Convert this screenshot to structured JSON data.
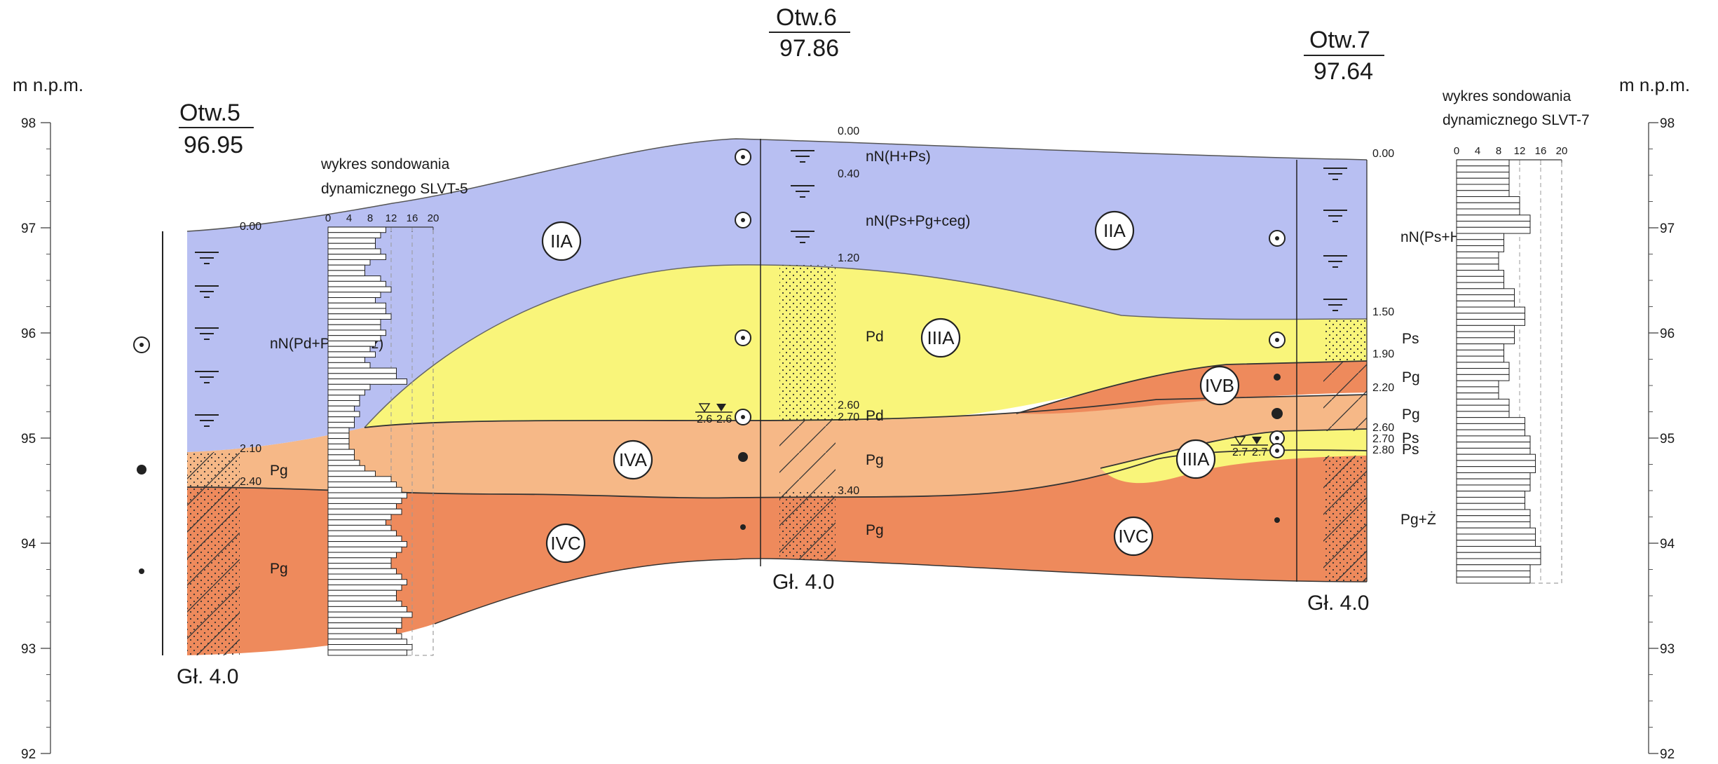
{
  "axis": {
    "label_left": "m n.p.m.",
    "label_right": "m n.p.m.",
    "ticks": [
      "98",
      "97",
      "96",
      "95",
      "94",
      "93",
      "92"
    ]
  },
  "boreholes": [
    {
      "name": "Otw.5",
      "elevation": "96.95",
      "depths": [
        "0.00",
        "2.10",
        "2.40"
      ],
      "bottom": "Gł. 4.0"
    },
    {
      "name": "Otw.6",
      "elevation": "97.86",
      "depths": [
        "0.00",
        "0.40",
        "1.20",
        "2.60",
        "2.70",
        "3.40"
      ],
      "bottom": "Gł. 4.0",
      "water_marks": [
        "2.6",
        "2.6"
      ]
    },
    {
      "name": "Otw.7",
      "elevation": "97.64",
      "depths": [
        "0.00",
        "1.50",
        "1.90",
        "2.20",
        "2.60",
        "2.70",
        "2.80"
      ],
      "bottom": "Gł. 4.0",
      "water_marks": [
        "2.7",
        "2.7"
      ]
    }
  ],
  "soil_labels": {
    "otw5_fill": "nN(Pd+Pg+Gruz)",
    "otw5_pg_upper": "Pg",
    "otw5_pg_lower": "Pg",
    "otw6_h_ps": "nN(H+Ps)",
    "otw6_ps_pg_ceg": "nN(Ps+Pg+ceg)",
    "otw6_pd": "Pd",
    "otw6_pd_thin": "Pd",
    "otw6_pg_upper": "Pg",
    "otw6_pg_lower": "Pg",
    "otw7_fill": "nN(Ps+H)",
    "otw7_ps": "Ps",
    "otw7_pg_a": "Pg",
    "otw7_pg_b": "Pg",
    "otw7_ps_a": "Ps",
    "otw7_ps_b": "Ps",
    "otw7_pg_z": "Pg+Ż"
  },
  "zones": {
    "IIA_left": "IIA",
    "IIA_right": "IIA",
    "IIIA_center": "IIIA",
    "IIIA_right": "IIIA",
    "IVA": "IVA",
    "IVB": "IVB",
    "IVC_left": "IVC",
    "IVC_right": "IVC"
  },
  "colors": {
    "fill_layer": "#b8bff2",
    "sand_yellow": "#f9f57a",
    "pg_light": "#f6b887",
    "pg_dark": "#ee8a5c"
  },
  "chart_data": [
    {
      "type": "bar",
      "title": "wykres sondowania dynamicznego SLVT-5",
      "orientation": "horizontal",
      "x_ticks": [
        "0",
        "4",
        "8",
        "12",
        "16",
        "20"
      ],
      "xlim": [
        0,
        20
      ],
      "values": [
        11,
        10,
        9,
        9,
        10,
        11,
        8,
        7,
        7,
        10,
        11,
        12,
        10,
        9,
        11,
        11,
        12,
        10,
        10,
        11,
        10,
        9,
        8,
        9,
        7,
        8,
        13,
        13,
        15,
        8,
        7,
        6,
        6,
        5,
        6,
        5,
        5,
        4,
        4,
        4,
        4,
        5,
        5,
        6,
        7,
        9,
        12,
        13,
        14,
        15,
        14,
        13,
        14,
        12,
        11,
        12,
        13,
        14,
        15,
        14,
        13,
        12,
        12,
        13,
        14,
        15,
        14,
        13,
        13,
        14,
        15,
        16,
        14,
        14,
        13,
        14,
        15,
        16,
        15
      ]
    },
    {
      "type": "bar",
      "title": "wykres sondowania dynamicznego SLVT-7",
      "orientation": "horizontal",
      "x_ticks": [
        "0",
        "4",
        "8",
        "12",
        "16",
        "20"
      ],
      "xlim": [
        0,
        20
      ],
      "values": [
        10,
        10,
        10,
        10,
        10,
        10,
        12,
        12,
        12,
        14,
        14,
        14,
        9,
        9,
        9,
        8,
        8,
        8,
        9,
        9,
        9,
        11,
        11,
        11,
        13,
        13,
        13,
        11,
        11,
        11,
        9,
        9,
        9,
        10,
        10,
        10,
        8,
        8,
        8,
        10,
        10,
        10,
        13,
        13,
        13,
        14,
        14,
        14,
        15,
        15,
        15,
        14,
        14,
        14,
        13,
        13,
        13,
        14,
        14,
        14,
        15,
        15,
        15,
        16,
        16,
        16,
        14,
        14,
        14
      ]
    }
  ]
}
